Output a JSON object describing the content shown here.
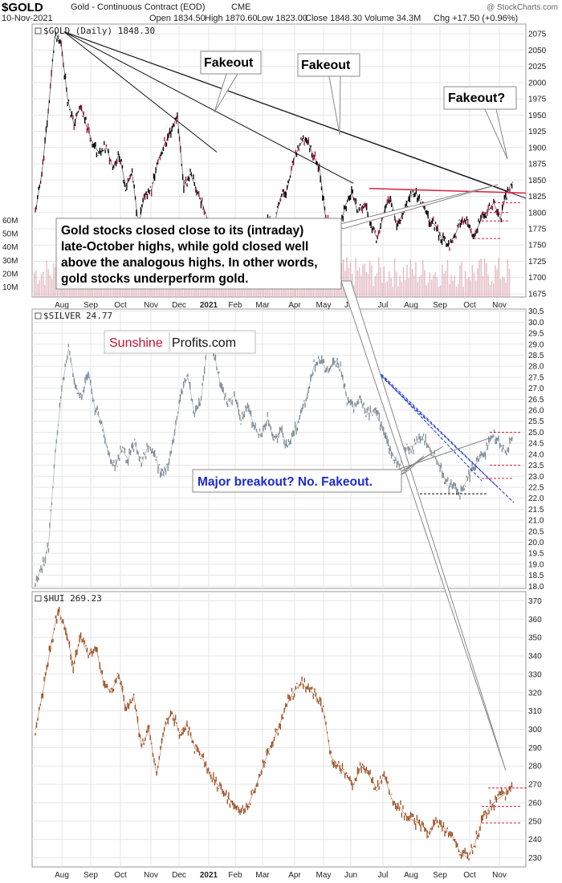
{
  "header": {
    "symbol": "$GOLD",
    "name": "Gold - Continuous Contract (EOD)",
    "exchange": "CME",
    "date": "10-Nov-2021",
    "open": "Open 1834.50",
    "high": "High 1870.60",
    "low": "Low 1823.00",
    "close": "Close 1848.30",
    "volume": "Volume 34.3M",
    "change": "Chg +17.50 (+0.96%)",
    "brand": "@ StockCharts.com"
  },
  "colors": {
    "gold_price": "#000000",
    "gold_down": "#b0103a",
    "volume": "#d9a0a8",
    "silver": "#7f8c95",
    "hui": "#9a4a1c",
    "resistance_red": "#d81f3c",
    "breakout_blue": "#1a3ad8",
    "grid": "#e6e6e6",
    "brand_red": "#c8102e"
  },
  "annotations": {
    "fakeout1": "Fakeout",
    "fakeout2": "Fakeout",
    "fakeout3": "Fakeout?",
    "gold_note": [
      "Gold stocks closed close to its (intraday)",
      "late-October highs, while gold closed well",
      "above the analogous highs. In other words,",
      "gold stocks underperform gold."
    ],
    "silver_note": "Major breakout? No. Fakeout.",
    "logo_left": "Sunshine",
    "logo_right": "Profits.com"
  },
  "chart_data": [
    {
      "type": "line",
      "title": "$GOLD (Daily) 1848.30",
      "x_ticks": [
        "Aug",
        "Sep",
        "Oct",
        "Nov",
        "Dec",
        "2021",
        "Feb",
        "Mar",
        "Apr",
        "May",
        "Jun",
        "Jul",
        "Aug",
        "Sep",
        "Oct",
        "Nov"
      ],
      "y_ticks": [
        1675,
        1700,
        1725,
        1750,
        1775,
        1800,
        1825,
        1850,
        1875,
        1900,
        1925,
        1950,
        1975,
        2000,
        2025,
        2050,
        2075
      ],
      "ylim": [
        1670,
        2090
      ],
      "volume_ticks": [
        "10M",
        "20M",
        "30M",
        "40M",
        "50M",
        "60M"
      ],
      "series": [
        {
          "values": [
            1800,
            1860,
            1955,
            2070,
            2060,
            1975,
            1935,
            1965,
            1930,
            1905,
            1890,
            1900,
            1870,
            1890,
            1840,
            1860,
            1780,
            1830,
            1835,
            1880,
            1905,
            1925,
            1950,
            1840,
            1860,
            1835,
            1810,
            1780,
            1730,
            1755,
            1710,
            1690,
            1735,
            1720,
            1740,
            1770,
            1790,
            1780,
            1825,
            1835,
            1880,
            1905,
            1915,
            1890,
            1870,
            1790,
            1780,
            1770,
            1810,
            1830,
            1800,
            1815,
            1780,
            1760,
            1800,
            1825,
            1780,
            1800,
            1825,
            1830,
            1810,
            1790,
            1780,
            1760,
            1750,
            1765,
            1790,
            1780,
            1760,
            1790,
            1800,
            1815,
            1790,
            1830,
            1848
          ]
        }
      ]
    },
    {
      "type": "line",
      "title": "$SILVER 24.77",
      "y_ticks": [
        18.0,
        18.5,
        19.0,
        19.5,
        20.0,
        20.5,
        21.0,
        21.5,
        22.0,
        22.5,
        23.0,
        23.5,
        24.0,
        24.5,
        25.0,
        25.5,
        26.0,
        26.5,
        27.0,
        27.5,
        28.0,
        28.5,
        29.0,
        29.5,
        30.0,
        30.5
      ],
      "ylim": [
        17.9,
        30.6
      ],
      "series": [
        {
          "values": [
            18.2,
            18.8,
            19.9,
            24.0,
            27.0,
            28.8,
            27.2,
            26.5,
            27.8,
            26.0,
            25.5,
            24.0,
            23.4,
            24.2,
            23.8,
            24.5,
            23.5,
            24.4,
            24.0,
            23.0,
            23.5,
            25.0,
            26.8,
            27.5,
            25.8,
            26.5,
            29.2,
            28.5,
            27.0,
            26.4,
            26.7,
            25.5,
            26.3,
            25.2,
            24.8,
            25.6,
            24.6,
            25.1,
            24.3,
            25.0,
            25.8,
            26.7,
            28.0,
            28.2,
            27.8,
            28.1,
            27.9,
            26.5,
            26.1,
            26.4,
            25.8,
            26.0,
            25.4,
            24.6,
            23.9,
            23.5,
            24.3,
            24.4,
            24.8,
            24.5,
            24.0,
            23.5,
            22.6,
            22.5,
            22.2,
            22.8,
            23.4,
            23.8,
            24.2,
            24.9,
            24.5,
            24.1,
            24.77
          ]
        }
      ]
    },
    {
      "type": "line",
      "title": "$HUI 269.23",
      "y_ticks": [
        230,
        240,
        250,
        260,
        270,
        280,
        290,
        300,
        310,
        320,
        330,
        340,
        350,
        360,
        370
      ],
      "ylim": [
        225,
        375
      ],
      "series": [
        {
          "values": [
            300,
            320,
            345,
            365,
            355,
            335,
            350,
            340,
            345,
            325,
            320,
            330,
            310,
            318,
            290,
            300,
            275,
            300,
            310,
            298,
            303,
            290,
            285,
            275,
            270,
            265,
            260,
            255,
            258,
            268,
            280,
            290,
            300,
            312,
            320,
            325,
            322,
            318,
            310,
            285,
            280,
            275,
            270,
            280,
            275,
            268,
            275,
            262,
            258,
            252,
            250,
            248,
            243,
            250,
            246,
            242,
            233,
            230,
            238,
            252,
            258,
            262,
            265,
            269.23
          ]
        }
      ]
    }
  ]
}
